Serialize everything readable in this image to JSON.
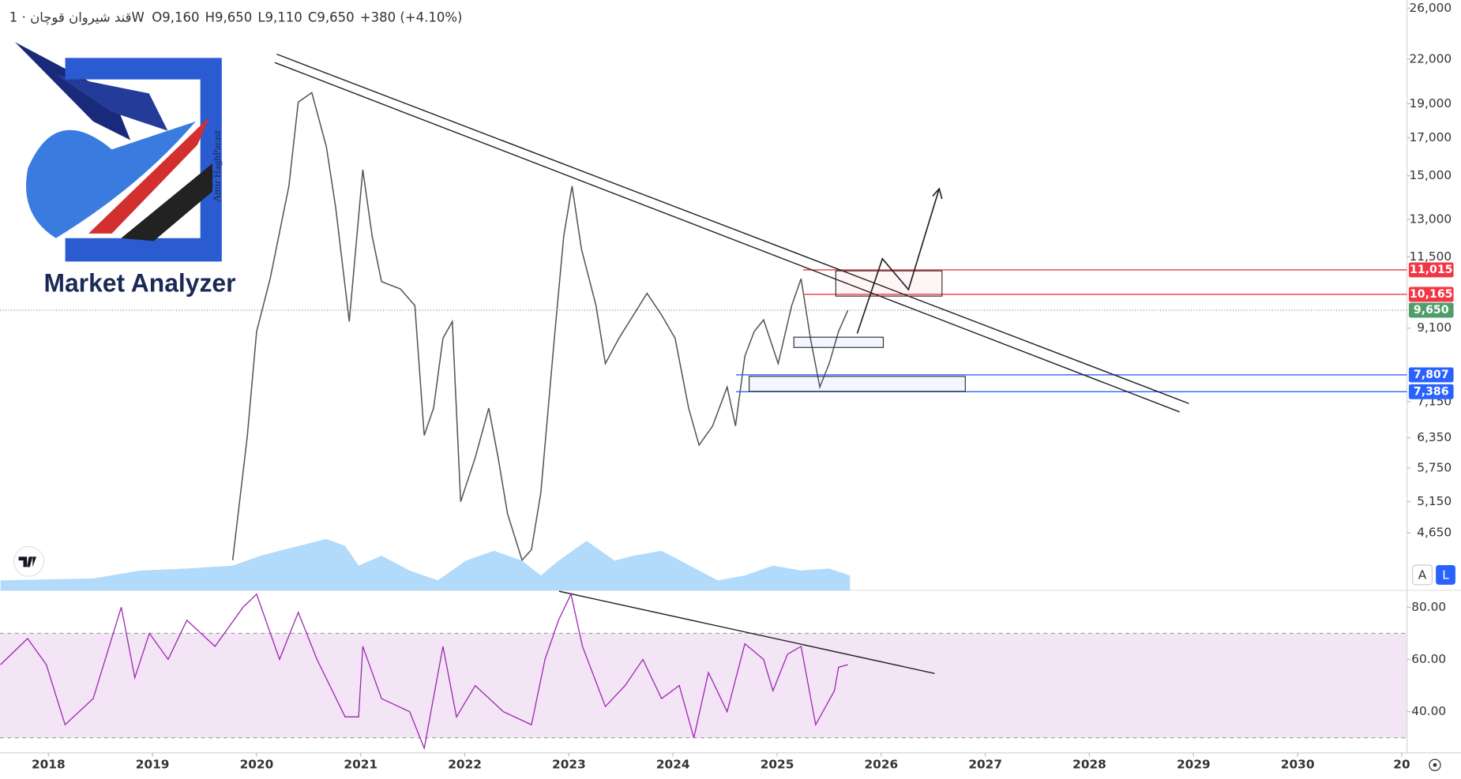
{
  "header": {
    "symbol": "قند شیروان قوچان",
    "separator": "·",
    "interval": "1W",
    "ohlc": [
      {
        "label": "O",
        "value": "9,160"
      },
      {
        "label": "H",
        "value": "9,650"
      },
      {
        "label": "L",
        "value": "9,110"
      },
      {
        "label": "C",
        "value": "9,650"
      }
    ],
    "change": "+380 (+4.10%)"
  },
  "logo": {
    "title": "Market Analyzer",
    "author": "Amir HaghParast"
  },
  "buttons": {
    "auto": "A",
    "log": "L"
  },
  "chart_data": [
    {
      "type": "line",
      "scale": "log",
      "color": "#555555",
      "x": [
        2019.77,
        2019.91,
        2020.0,
        2020.13,
        2020.31,
        2020.4,
        2020.53,
        2020.67,
        2020.76,
        2020.89,
        2021.02,
        2021.11,
        2021.2,
        2021.38,
        2021.52,
        2021.61,
        2021.7,
        2021.79,
        2021.88,
        2021.96,
        2022.1,
        2022.23,
        2022.32,
        2022.41,
        2022.55,
        2022.64,
        2022.73,
        2022.86,
        2022.95,
        2023.03,
        2023.12,
        2023.26,
        2023.35,
        2023.48,
        2023.62,
        2023.75,
        2023.89,
        2024.02,
        2024.15,
        2024.25,
        2024.38,
        2024.52,
        2024.6,
        2024.69,
        2024.78,
        2024.87,
        2025.01,
        2025.14,
        2025.23,
        2025.32,
        2025.41,
        2025.5,
        2025.59,
        2025.68
      ],
      "values": [
        4250,
        6370,
        9000,
        10700,
        14500,
        19100,
        19700,
        16500,
        13500,
        9300,
        15300,
        12300,
        10600,
        10350,
        9800,
        6400,
        7000,
        8800,
        9300,
        5150,
        5950,
        7000,
        5950,
        4950,
        4250,
        4400,
        5300,
        8800,
        12300,
        14500,
        11800,
        9800,
        8100,
        8800,
        9500,
        10200,
        9500,
        8800,
        7000,
        6200,
        6600,
        7500,
        6600,
        8300,
        9000,
        9350,
        8100,
        9800,
        10700,
        8800,
        7500,
        8100,
        9000,
        9650
      ],
      "xlim": [
        2017.535,
        2031.05
      ],
      "xticks": [
        2018,
        2019,
        2020,
        2021,
        2022,
        2023,
        2024,
        2025,
        2026,
        2027,
        2028,
        2029,
        2030,
        {
          "value": 2031,
          "label": "20"
        }
      ],
      "ylim": [
        3850,
        26700
      ],
      "yticks": [
        {
          "value": 26000,
          "label": "26,000"
        },
        {
          "value": 22000,
          "label": "22,000"
        },
        {
          "value": 19000,
          "label": "19,000"
        },
        {
          "value": 17000,
          "label": "17,000"
        },
        {
          "value": 15000,
          "label": "15,000"
        },
        {
          "value": 13000,
          "label": "13,000"
        },
        {
          "value": 11500,
          "label": "11,500"
        },
        {
          "value": 9100,
          "label": "9,100"
        },
        {
          "value": 7150,
          "label": "7,150"
        },
        {
          "value": 6350,
          "label": "6,350"
        },
        {
          "value": 5750,
          "label": "5,750"
        },
        {
          "value": 5150,
          "label": "5,150"
        },
        {
          "value": 4650,
          "label": "4,650"
        }
      ],
      "last_price": {
        "value": 9650,
        "label": "9,650",
        "color": "#4f9d69"
      },
      "levels": [
        {
          "value": 11015,
          "label": "11,015",
          "color": "#f23645"
        },
        {
          "value": 10165,
          "label": "10,165",
          "color": "#f23645"
        },
        {
          "value": 7807,
          "label": "7,807",
          "color": "#2962ff"
        },
        {
          "value": 7386,
          "label": "7,386",
          "color": "#2962ff"
        }
      ]
    },
    {
      "type": "area",
      "color": "#90caf9",
      "x": [
        2017.54,
        2018.43,
        2018.88,
        2019.33,
        2019.77,
        2020.04,
        2020.22,
        2020.67,
        2020.85,
        2020.98,
        2021.2,
        2021.47,
        2021.74,
        2022.01,
        2022.28,
        2022.55,
        2022.73,
        2022.9,
        2023.17,
        2023.44,
        2023.62,
        2023.89,
        2024.16,
        2024.43,
        2024.69,
        2024.96,
        2025.23,
        2025.5,
        2025.7
      ],
      "values": [
        10,
        12,
        20,
        22,
        25,
        35,
        40,
        52,
        45,
        25,
        35,
        20,
        10,
        30,
        40,
        30,
        15,
        30,
        50,
        30,
        35,
        40,
        25,
        10,
        15,
        25,
        20,
        22,
        15
      ]
    },
    {
      "type": "line",
      "color": "#9c27b0",
      "x": [
        2017.54,
        2017.8,
        2017.98,
        2018.16,
        2018.43,
        2018.7,
        2018.83,
        2018.97,
        2019.15,
        2019.33,
        2019.6,
        2019.87,
        2020.0,
        2020.22,
        2020.4,
        2020.58,
        2020.85,
        2020.98,
        2021.02,
        2021.2,
        2021.47,
        2021.61,
        2021.79,
        2021.92,
        2022.1,
        2022.37,
        2022.64,
        2022.77,
        2022.9,
        2023.02,
        2023.13,
        2023.35,
        2023.54,
        2023.71,
        2023.89,
        2024.06,
        2024.2,
        2024.34,
        2024.52,
        2024.69,
        2024.87,
        2024.96,
        2025.1,
        2025.23,
        2025.37,
        2025.55,
        2025.59,
        2025.68
      ],
      "values": [
        58,
        68,
        58,
        35,
        45,
        80,
        53,
        70,
        60,
        75,
        65,
        80,
        85,
        60,
        78,
        60,
        38,
        38,
        65,
        45,
        40,
        26,
        65,
        38,
        50,
        40,
        35,
        60,
        75,
        85,
        65,
        42,
        50,
        60,
        45,
        50,
        30,
        55,
        40,
        66,
        60,
        48,
        62,
        65,
        35,
        48,
        57,
        58
      ],
      "ylim": [
        24.6,
        86.1
      ],
      "yticks": [
        {
          "value": 80,
          "label": "80.00"
        },
        {
          "value": 60,
          "label": "60.00"
        },
        {
          "value": 40,
          "label": "40.00"
        }
      ],
      "band": [
        30,
        70
      ]
    }
  ]
}
